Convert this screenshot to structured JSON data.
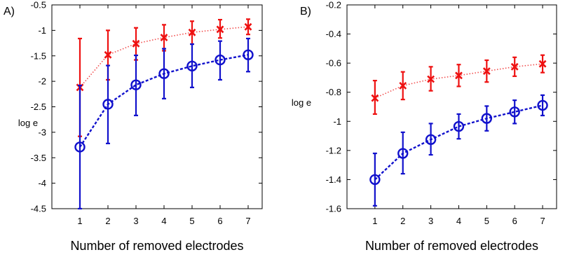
{
  "chart_data": [
    {
      "type": "line",
      "panel_label": "A)",
      "title": "",
      "xlabel": "Number of removed electrodes",
      "ylabel": "log e",
      "xlim": [
        0,
        7.5
      ],
      "ylim": [
        -4.5,
        -0.5
      ],
      "x_ticks": [
        1,
        2,
        3,
        4,
        5,
        6,
        7
      ],
      "y_ticks": [
        -0.5,
        -1,
        -1.5,
        -2,
        -2.5,
        -3,
        -3.5,
        -4,
        -4.5
      ],
      "grid": false,
      "x": [
        1,
        2,
        3,
        4,
        5,
        6,
        7
      ],
      "series": [
        {
          "color": "#ee1111",
          "marker": "x",
          "line": "dotted",
          "values": [
            -2.12,
            -1.48,
            -1.26,
            -1.14,
            -1.04,
            -0.98,
            -0.93
          ],
          "err_low": [
            -3.08,
            -1.97,
            -1.58,
            -1.4,
            -1.27,
            -1.15,
            -1.08
          ],
          "err_high": [
            -1.16,
            -1.0,
            -0.95,
            -0.89,
            -0.82,
            -0.79,
            -0.78
          ]
        },
        {
          "color": "#1111cc",
          "marker": "o",
          "line": "dashed",
          "values": [
            -3.29,
            -2.45,
            -2.07,
            -1.85,
            -1.7,
            -1.58,
            -1.48
          ],
          "err_low": [
            -4.5,
            -3.22,
            -2.67,
            -2.34,
            -2.12,
            -1.97,
            -1.81
          ],
          "err_high": [
            -2.08,
            -1.69,
            -1.49,
            -1.36,
            -1.27,
            -1.21,
            -1.16
          ]
        }
      ]
    },
    {
      "type": "line",
      "panel_label": "B)",
      "title": "",
      "xlabel": "Number of removed electrodes",
      "ylabel": "log e",
      "xlim": [
        0,
        7.5
      ],
      "ylim": [
        -1.6,
        -0.2
      ],
      "x_ticks": [
        1,
        2,
        3,
        4,
        5,
        6,
        7
      ],
      "y_ticks": [
        -0.2,
        -0.4,
        -0.6,
        -0.8,
        -1,
        -1.2,
        -1.4,
        -1.6
      ],
      "grid": false,
      "x": [
        1,
        2,
        3,
        4,
        5,
        6,
        7
      ],
      "series": [
        {
          "color": "#ee1111",
          "marker": "x",
          "line": "dotted",
          "values": [
            -0.84,
            -0.755,
            -0.71,
            -0.685,
            -0.655,
            -0.625,
            -0.605
          ],
          "err_low": [
            -0.95,
            -0.85,
            -0.79,
            -0.76,
            -0.73,
            -0.69,
            -0.665
          ],
          "err_high": [
            -0.72,
            -0.66,
            -0.625,
            -0.61,
            -0.58,
            -0.56,
            -0.545
          ]
        },
        {
          "color": "#1111cc",
          "marker": "o",
          "line": "dashed",
          "values": [
            -1.4,
            -1.22,
            -1.125,
            -1.035,
            -0.98,
            -0.935,
            -0.89
          ],
          "err_low": [
            -1.58,
            -1.36,
            -1.23,
            -1.12,
            -1.065,
            -1.015,
            -0.96
          ],
          "err_high": [
            -1.22,
            -1.075,
            -1.015,
            -0.95,
            -0.895,
            -0.855,
            -0.82
          ]
        }
      ]
    }
  ]
}
